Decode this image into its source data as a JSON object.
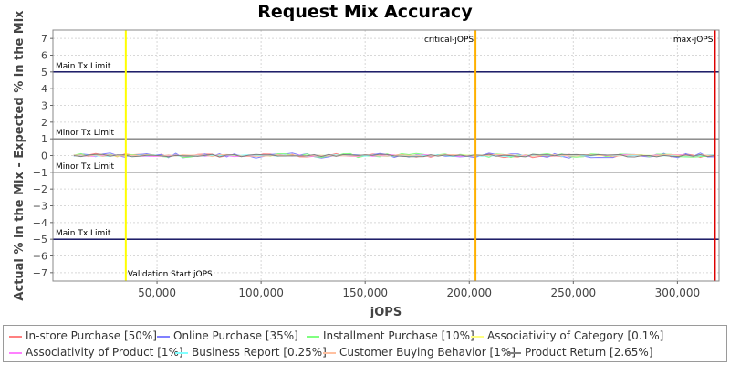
{
  "chart_data": {
    "type": "line",
    "title": "Request Mix Accuracy",
    "xlabel": "jOPS",
    "ylabel": "Actual % in the Mix - Expected % in the Mix",
    "xlim": [
      0,
      320000
    ],
    "ylim": [
      -7.5,
      7.5
    ],
    "x_ticks": [
      50000,
      100000,
      150000,
      200000,
      250000,
      300000
    ],
    "x_tick_labels": [
      "50,000",
      "100,000",
      "150,000",
      "200,000",
      "250,000",
      "300,000"
    ],
    "y_ticks": [
      7,
      6,
      5,
      4,
      3,
      2,
      1,
      0,
      -1,
      -2,
      -3,
      -4,
      -5,
      -6,
      -7
    ],
    "y_tick_labels": [
      "7",
      "6",
      "5",
      "4",
      "3",
      "2",
      "1",
      "0",
      "−1",
      "−2",
      "−3",
      "−4",
      "−5",
      "−6",
      "−7"
    ],
    "hlines": [
      {
        "y": 5,
        "label": "Main Tx Limit",
        "color": "#000055",
        "label_side": "above"
      },
      {
        "y": 1,
        "label": "Minor Tx Limit",
        "color": "#808080",
        "label_side": "above"
      },
      {
        "y": -1,
        "label": "Minor Tx Limit",
        "color": "#808080",
        "label_side": "above_inside"
      },
      {
        "y": -5,
        "label": "Main Tx Limit",
        "color": "#000055",
        "label_side": "above"
      }
    ],
    "vlines": [
      {
        "x": 35000,
        "label": "Validation Start jOPS",
        "color": "#ffff00",
        "label_pos": "bottom"
      },
      {
        "x": 203000,
        "label": "critical-jOPS",
        "color": "#ffb000",
        "label_pos": "top"
      },
      {
        "x": 318000,
        "label": "max-jOPS",
        "color": "#dd0000",
        "label_pos": "top"
      }
    ],
    "series": [
      {
        "name": "In-store Purchase [50%]",
        "color": "#ff8080",
        "amplitude": 0.12
      },
      {
        "name": "Online Purchase [35%]",
        "color": "#8080ff",
        "amplitude": 0.15
      },
      {
        "name": "Installment Purchase [10%]",
        "color": "#80ff80",
        "amplitude": 0.12
      },
      {
        "name": "Associativity of Category [0.1%]",
        "color": "#ffff80",
        "amplitude": 0.03
      },
      {
        "name": "Associativity of Product [1%]",
        "color": "#ff80ff",
        "amplitude": 0.06
      },
      {
        "name": "Business Report [0.25%]",
        "color": "#80ffff",
        "amplitude": 0.05
      },
      {
        "name": "Customer Buying Behavior [1%]",
        "color": "#ffc0a0",
        "amplitude": 0.06
      },
      {
        "name": "Product Return [2.65%]",
        "color": "#808080",
        "amplitude": 0.08
      }
    ],
    "grid": true,
    "legend_position": "bottom"
  }
}
